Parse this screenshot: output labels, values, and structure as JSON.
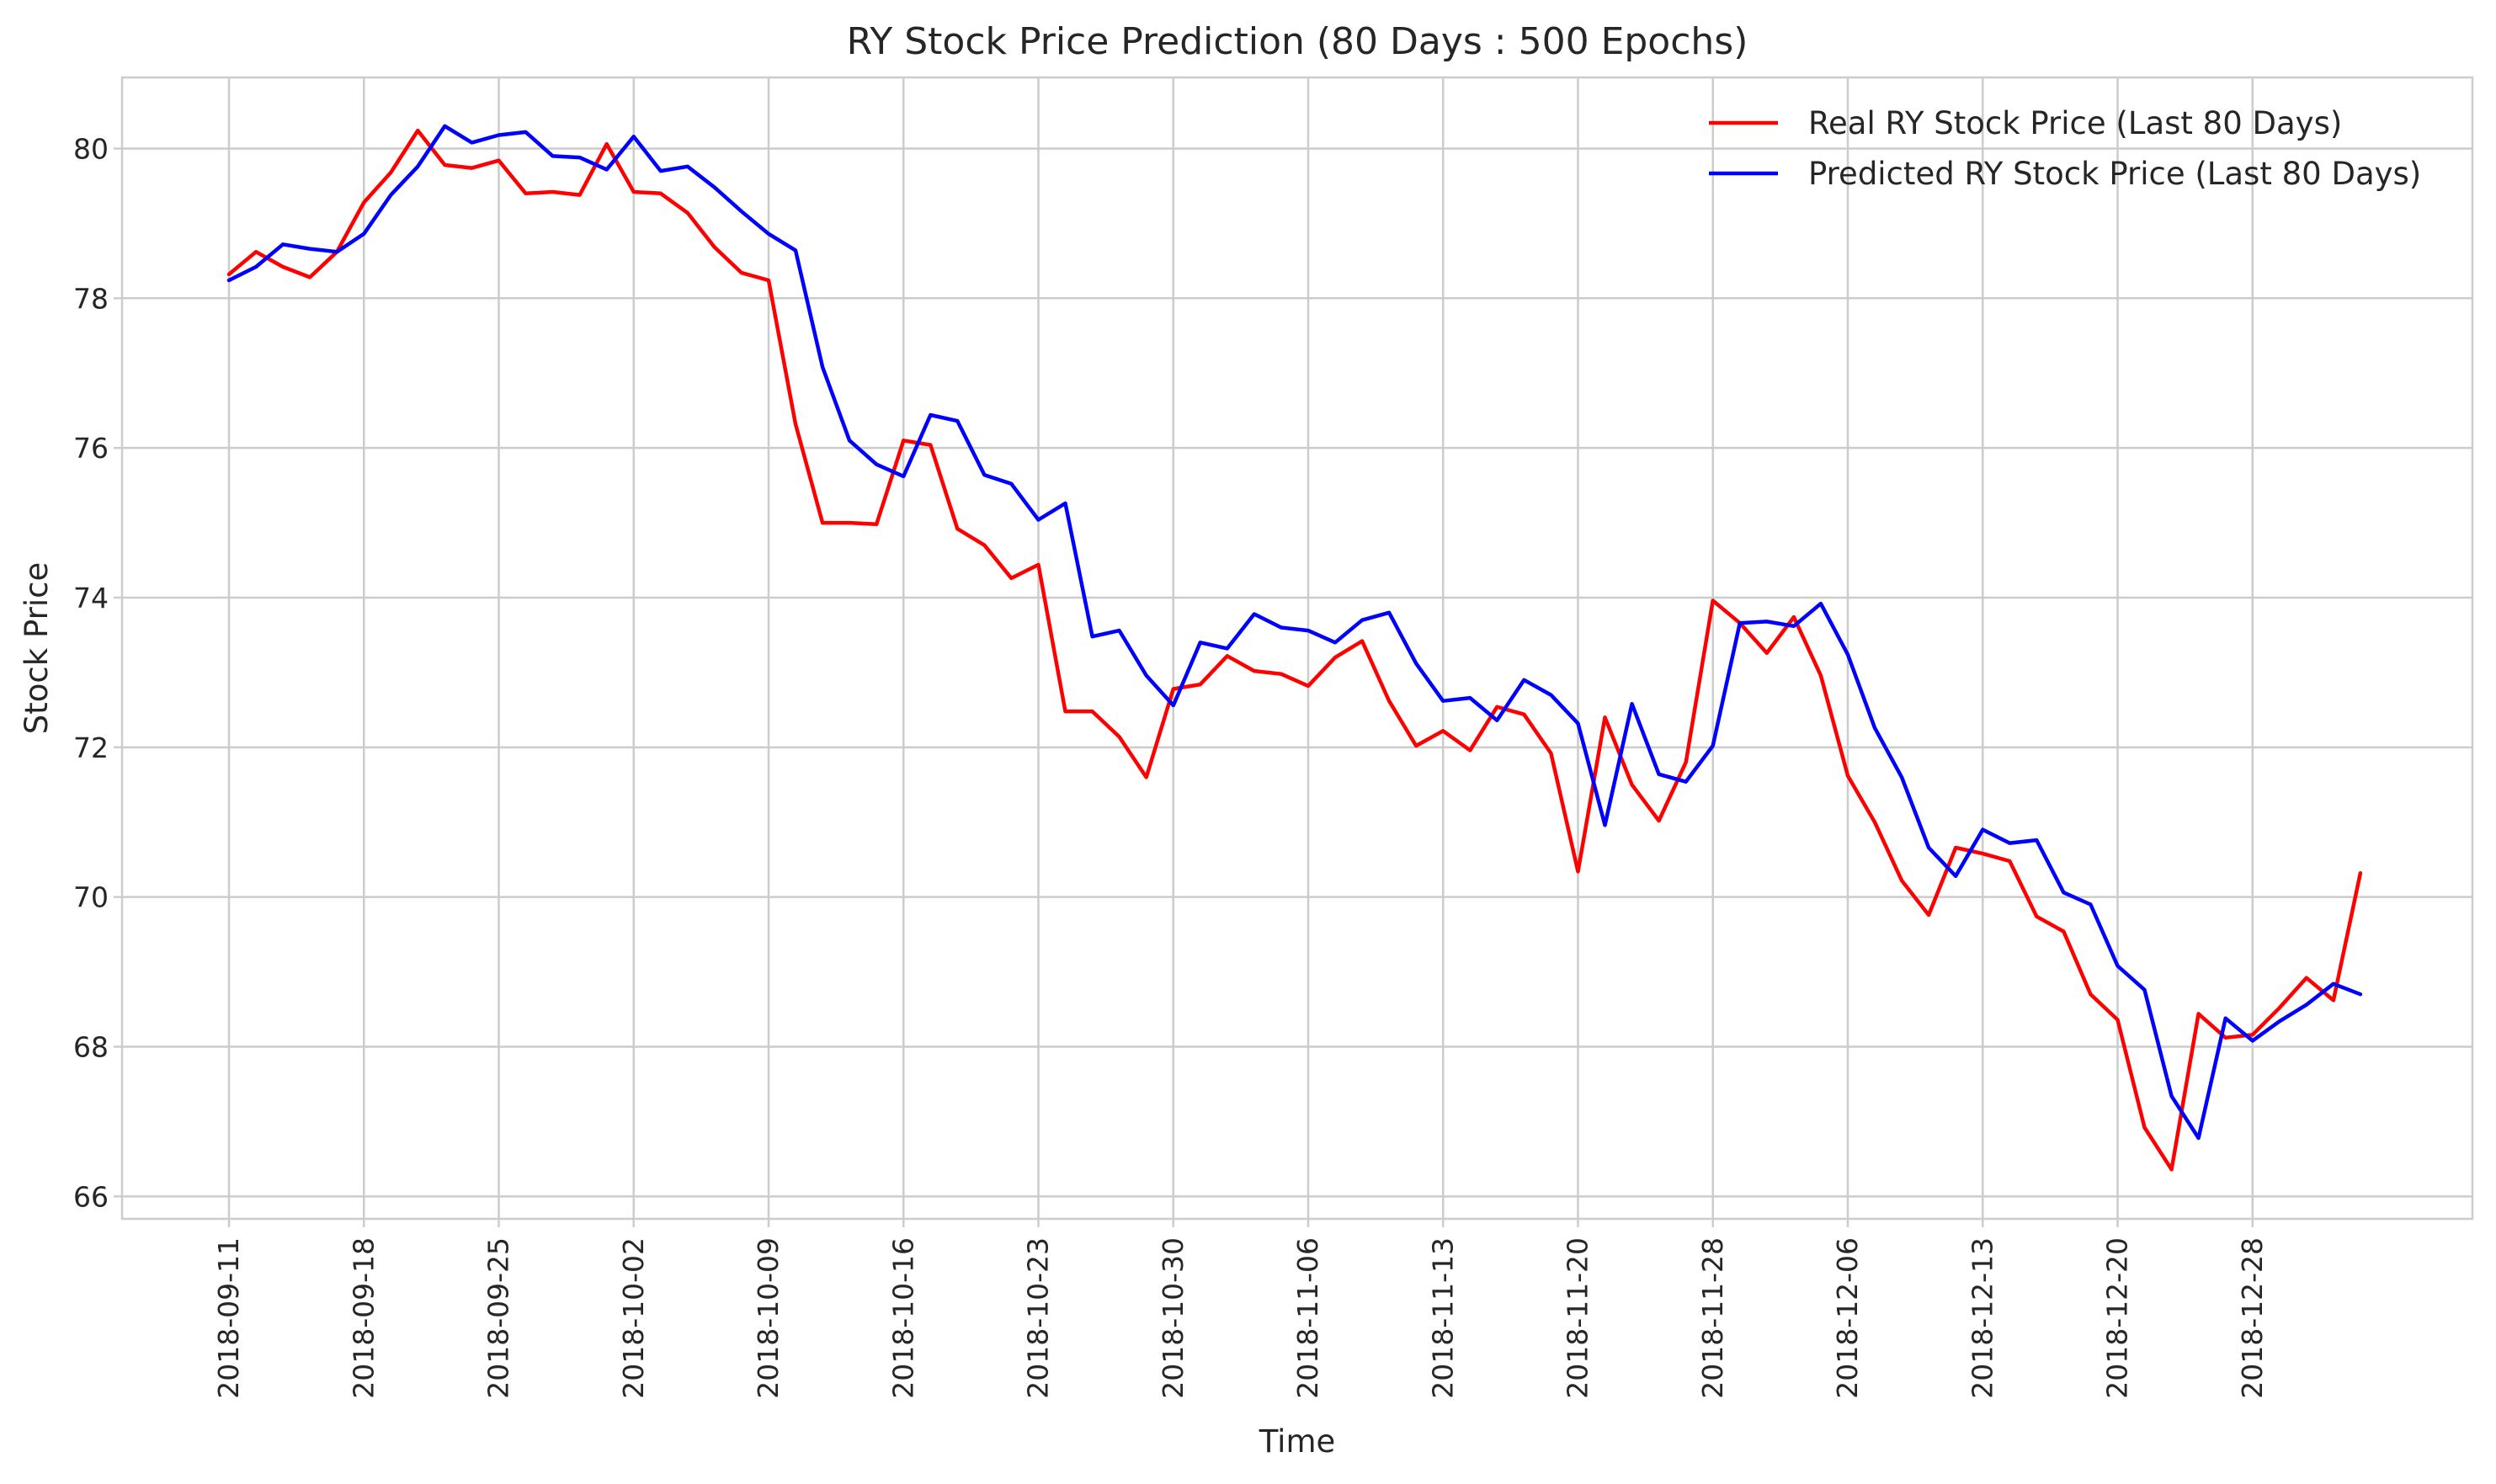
{
  "chart_data": {
    "type": "line",
    "title": "RY Stock Price Prediction (80 Days : 500 Epochs)",
    "xlabel": "Time",
    "ylabel": "Stock Price",
    "ylim": [
      65.7,
      80.95
    ],
    "yticks": [
      66,
      68,
      70,
      72,
      74,
      76,
      78,
      80
    ],
    "xtick_labels": [
      "2018-09-11",
      "2018-09-18",
      "2018-09-25",
      "2018-10-02",
      "2018-10-09",
      "2018-10-16",
      "2018-10-23",
      "2018-10-30",
      "2018-11-06",
      "2018-11-13",
      "2018-11-20",
      "2018-11-28",
      "2018-12-06",
      "2018-12-13",
      "2018-12-20",
      "2018-12-28"
    ],
    "xtick_every": 5,
    "grid": true,
    "legend_position": "top-right",
    "series": [
      {
        "name": "Real RY Stock Price (Last 80 Days)",
        "color": "#ff0000",
        "values": [
          78.32,
          78.62,
          78.42,
          78.28,
          78.62,
          79.28,
          79.68,
          80.24,
          79.78,
          79.74,
          79.84,
          79.4,
          79.42,
          79.38,
          80.06,
          79.42,
          79.4,
          79.14,
          78.68,
          78.34,
          78.24,
          76.32,
          75.0,
          75.0,
          74.98,
          76.1,
          76.04,
          74.92,
          74.7,
          74.26,
          74.44,
          72.48,
          72.48,
          72.14,
          71.6,
          72.78,
          72.84,
          73.22,
          73.02,
          72.98,
          72.82,
          73.2,
          73.42,
          72.62,
          72.02,
          72.22,
          71.96,
          72.54,
          72.44,
          71.92,
          70.34,
          72.4,
          71.5,
          71.02,
          71.8,
          73.96,
          73.66,
          73.26,
          73.74,
          72.96,
          71.62,
          71.0,
          70.22,
          69.76,
          70.66,
          70.58,
          70.48,
          69.74,
          69.54,
          68.7,
          68.36,
          66.92,
          66.36,
          68.44,
          68.12,
          68.16,
          68.52,
          68.92,
          68.62,
          70.32
        ]
      },
      {
        "name": "Predicted RY Stock Price (Last 80 Days)",
        "color": "#0000ff",
        "values": [
          78.24,
          78.42,
          78.72,
          78.66,
          78.62,
          78.86,
          79.38,
          79.76,
          80.3,
          80.08,
          80.18,
          80.22,
          79.9,
          79.88,
          79.72,
          80.16,
          79.7,
          79.76,
          79.48,
          79.16,
          78.86,
          78.64,
          77.08,
          76.1,
          75.78,
          75.62,
          76.44,
          76.36,
          75.64,
          75.52,
          75.04,
          75.26,
          73.48,
          73.56,
          72.96,
          72.56,
          73.4,
          73.32,
          73.78,
          73.6,
          73.56,
          73.4,
          73.7,
          73.8,
          73.12,
          72.62,
          72.66,
          72.36,
          72.9,
          72.7,
          72.32,
          70.96,
          72.58,
          71.64,
          71.54,
          72.02,
          73.66,
          73.68,
          73.62,
          73.92,
          73.24,
          72.26,
          71.6,
          70.66,
          70.28,
          70.9,
          70.72,
          70.76,
          70.06,
          69.9,
          69.08,
          68.76,
          67.34,
          66.78,
          68.38,
          68.08,
          68.34,
          68.56,
          68.84,
          68.7
        ]
      }
    ]
  }
}
